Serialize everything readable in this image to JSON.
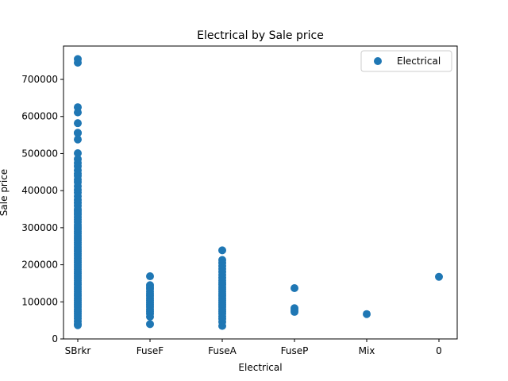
{
  "colors": {
    "series": "#1f77b4",
    "axis": "#000000",
    "background": "#ffffff",
    "legend_border": "#cccccc"
  },
  "chart_data": {
    "type": "scatter",
    "title": "Electrical by Sale price",
    "xlabel": "Electrical",
    "ylabel": "Sale price",
    "categories": [
      "SBrkr",
      "FuseF",
      "FuseA",
      "FuseP",
      "Mix",
      "0"
    ],
    "ylim": [
      0,
      790000
    ],
    "yticks": [
      0,
      100000,
      200000,
      300000,
      400000,
      500000,
      600000,
      700000
    ],
    "ytick_labels": [
      "0",
      "100000",
      "200000",
      "300000",
      "400000",
      "500000",
      "600000",
      "700000"
    ],
    "legend": {
      "position": "top-right",
      "entries": [
        "Electrical"
      ]
    },
    "grid": false,
    "series": [
      {
        "name": "Electrical",
        "points": [
          [
            "SBrkr",
            755000
          ],
          [
            "SBrkr",
            745000
          ],
          [
            "SBrkr",
            625000
          ],
          [
            "SBrkr",
            611000
          ],
          [
            "SBrkr",
            582000
          ],
          [
            "SBrkr",
            556000
          ],
          [
            "SBrkr",
            555000
          ],
          [
            "SBrkr",
            538000
          ],
          [
            "SBrkr",
            501000
          ],
          [
            "SBrkr",
            485000
          ],
          [
            "SBrkr",
            475000
          ],
          [
            "SBrkr",
            466000
          ],
          [
            "SBrkr",
            455000
          ],
          [
            "SBrkr",
            446000
          ],
          [
            "SBrkr",
            440000
          ],
          [
            "SBrkr",
            430000
          ],
          [
            "SBrkr",
            423000
          ],
          [
            "SBrkr",
            412000
          ],
          [
            "SBrkr",
            402000
          ],
          [
            "SBrkr",
            395000
          ],
          [
            "SBrkr",
            385000
          ],
          [
            "SBrkr",
            375000
          ],
          [
            "SBrkr",
            367000
          ],
          [
            "SBrkr",
            359000
          ],
          [
            "SBrkr",
            350000
          ],
          [
            "SBrkr",
            345000
          ],
          [
            "SBrkr",
            340000
          ],
          [
            "SBrkr",
            335000
          ],
          [
            "SBrkr",
            328000
          ],
          [
            "SBrkr",
            322000
          ],
          [
            "SBrkr",
            315000
          ],
          [
            "SBrkr",
            308000
          ],
          [
            "SBrkr",
            302000
          ],
          [
            "SBrkr",
            296000
          ],
          [
            "SBrkr",
            290000
          ],
          [
            "SBrkr",
            284000
          ],
          [
            "SBrkr",
            278000
          ],
          [
            "SBrkr",
            272000
          ],
          [
            "SBrkr",
            266000
          ],
          [
            "SBrkr",
            260000
          ],
          [
            "SBrkr",
            254000
          ],
          [
            "SBrkr",
            248000
          ],
          [
            "SBrkr",
            242000
          ],
          [
            "SBrkr",
            236000
          ],
          [
            "SBrkr",
            230000
          ],
          [
            "SBrkr",
            224000
          ],
          [
            "SBrkr",
            218000
          ],
          [
            "SBrkr",
            212000
          ],
          [
            "SBrkr",
            206000
          ],
          [
            "SBrkr",
            200000
          ],
          [
            "SBrkr",
            194000
          ],
          [
            "SBrkr",
            188000
          ],
          [
            "SBrkr",
            182000
          ],
          [
            "SBrkr",
            176000
          ],
          [
            "SBrkr",
            170000
          ],
          [
            "SBrkr",
            164000
          ],
          [
            "SBrkr",
            158000
          ],
          [
            "SBrkr",
            152000
          ],
          [
            "SBrkr",
            146000
          ],
          [
            "SBrkr",
            140000
          ],
          [
            "SBrkr",
            134000
          ],
          [
            "SBrkr",
            128000
          ],
          [
            "SBrkr",
            122000
          ],
          [
            "SBrkr",
            116000
          ],
          [
            "SBrkr",
            110000
          ],
          [
            "SBrkr",
            104000
          ],
          [
            "SBrkr",
            98000
          ],
          [
            "SBrkr",
            92000
          ],
          [
            "SBrkr",
            86000
          ],
          [
            "SBrkr",
            80000
          ],
          [
            "SBrkr",
            74000
          ],
          [
            "SBrkr",
            68000
          ],
          [
            "SBrkr",
            62000
          ],
          [
            "SBrkr",
            55000
          ],
          [
            "SBrkr",
            48000
          ],
          [
            "SBrkr",
            40000
          ],
          [
            "SBrkr",
            37000
          ],
          [
            "FuseF",
            169000
          ],
          [
            "FuseF",
            145000
          ],
          [
            "FuseF",
            140000
          ],
          [
            "FuseF",
            135000
          ],
          [
            "FuseF",
            128000
          ],
          [
            "FuseF",
            122000
          ],
          [
            "FuseF",
            116000
          ],
          [
            "FuseF",
            110000
          ],
          [
            "FuseF",
            104000
          ],
          [
            "FuseF",
            98000
          ],
          [
            "FuseF",
            92000
          ],
          [
            "FuseF",
            86000
          ],
          [
            "FuseF",
            80000
          ],
          [
            "FuseF",
            74000
          ],
          [
            "FuseF",
            68000
          ],
          [
            "FuseF",
            60000
          ],
          [
            "FuseF",
            40000
          ],
          [
            "FuseA",
            239000
          ],
          [
            "FuseA",
            213000
          ],
          [
            "FuseA",
            205000
          ],
          [
            "FuseA",
            197000
          ],
          [
            "FuseA",
            189000
          ],
          [
            "FuseA",
            181000
          ],
          [
            "FuseA",
            173000
          ],
          [
            "FuseA",
            165000
          ],
          [
            "FuseA",
            158000
          ],
          [
            "FuseA",
            152000
          ],
          [
            "FuseA",
            146000
          ],
          [
            "FuseA",
            140000
          ],
          [
            "FuseA",
            134000
          ],
          [
            "FuseA",
            128000
          ],
          [
            "FuseA",
            122000
          ],
          [
            "FuseA",
            116000
          ],
          [
            "FuseA",
            110000
          ],
          [
            "FuseA",
            104000
          ],
          [
            "FuseA",
            98000
          ],
          [
            "FuseA",
            92000
          ],
          [
            "FuseA",
            86000
          ],
          [
            "FuseA",
            80000
          ],
          [
            "FuseA",
            74000
          ],
          [
            "FuseA",
            68000
          ],
          [
            "FuseA",
            61000
          ],
          [
            "FuseA",
            54000
          ],
          [
            "FuseA",
            46000
          ],
          [
            "FuseA",
            35000
          ],
          [
            "FuseP",
            137000
          ],
          [
            "FuseP",
            83000
          ],
          [
            "FuseP",
            78000
          ],
          [
            "FuseP",
            73000
          ],
          [
            "Mix",
            67000
          ],
          [
            "0",
            167500
          ]
        ]
      }
    ]
  }
}
